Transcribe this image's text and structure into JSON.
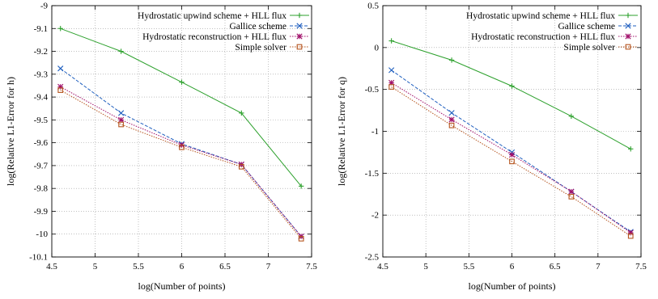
{
  "chart_data": [
    {
      "type": "line",
      "xlabel": "log(Number of points)",
      "ylabel": "log(Relative L1-Error for h)",
      "xlim": [
        4.5,
        7.5
      ],
      "ylim": [
        -10.1,
        -9.0
      ],
      "xticks": [
        4.5,
        5,
        5.5,
        6,
        6.5,
        7,
        7.5
      ],
      "xtick_labels": [
        "4.5",
        "5",
        "5.5",
        "6",
        "6.5",
        "7",
        "7.5"
      ],
      "yticks": [
        -10.1,
        -10.0,
        -9.9,
        -9.8,
        -9.7,
        -9.6,
        -9.5,
        -9.4,
        -9.3,
        -9.2,
        -9.1,
        -9.0
      ],
      "ytick_labels": [
        "-10.1",
        "-10",
        "-9.9",
        "-9.8",
        "-9.7",
        "-9.6",
        "-9.5",
        "-9.4",
        "-9.3",
        "-9.2",
        "-9.1",
        "-9"
      ],
      "grid": true,
      "legend_position": "top-right",
      "series": [
        {
          "name": "Hydrostatic upwind scheme + HLL flux",
          "color": "#2ca02c",
          "marker": "plus",
          "dash": "solid",
          "x": [
            4.6,
            5.3,
            6.0,
            6.69,
            7.38
          ],
          "y": [
            -9.1,
            -9.2,
            -9.335,
            -9.47,
            -9.79
          ]
        },
        {
          "name": "Gallice scheme",
          "color": "#1f5fbf",
          "marker": "cross",
          "dash": "dashed",
          "x": [
            4.6,
            5.3,
            6.0,
            6.69,
            7.38
          ],
          "y": [
            -9.275,
            -9.47,
            -9.605,
            -9.695,
            -10.01
          ]
        },
        {
          "name": "Hydrostatic reconstruction + HLL flux",
          "color": "#a0106a",
          "marker": "star",
          "dash": "dotted",
          "x": [
            4.6,
            5.3,
            6.0,
            6.69,
            7.38
          ],
          "y": [
            -9.355,
            -9.5,
            -9.61,
            -9.695,
            -10.01
          ]
        },
        {
          "name": "Simple solver",
          "color": "#b5541e",
          "marker": "square",
          "dash": "dotted",
          "x": [
            4.6,
            5.3,
            6.0,
            6.69,
            7.38
          ],
          "y": [
            -9.37,
            -9.52,
            -9.62,
            -9.705,
            -10.02
          ]
        }
      ]
    },
    {
      "type": "line",
      "xlabel": "log(Number of points)",
      "ylabel": "log(Relative L1-Error for q)",
      "xlim": [
        4.5,
        7.5
      ],
      "ylim": [
        -2.5,
        0.5
      ],
      "xticks": [
        4.5,
        5,
        5.5,
        6,
        6.5,
        7,
        7.5
      ],
      "xtick_labels": [
        "4.5",
        "5",
        "5.5",
        "6",
        "6.5",
        "7",
        "7.5"
      ],
      "yticks": [
        -2.5,
        -2.0,
        -1.5,
        -1.0,
        -0.5,
        0.0,
        0.5
      ],
      "ytick_labels": [
        "-2.5",
        "-2",
        "-1.5",
        "-1",
        "-0.5",
        "0",
        "0.5"
      ],
      "grid": true,
      "legend_position": "top-right",
      "series": [
        {
          "name": "Hydrostatic upwind scheme + HLL flux",
          "color": "#2ca02c",
          "marker": "plus",
          "dash": "solid",
          "x": [
            4.6,
            5.3,
            6.0,
            6.69,
            7.38
          ],
          "y": [
            0.08,
            -0.15,
            -0.46,
            -0.82,
            -1.21
          ]
        },
        {
          "name": "Gallice scheme",
          "color": "#1f5fbf",
          "marker": "cross",
          "dash": "dashed",
          "x": [
            4.6,
            5.3,
            6.0,
            6.69,
            7.38
          ],
          "y": [
            -0.27,
            -0.78,
            -1.25,
            -1.72,
            -2.2
          ]
        },
        {
          "name": "Hydrostatic reconstruction + HLL flux",
          "color": "#a0106a",
          "marker": "star",
          "dash": "dotted",
          "x": [
            4.6,
            5.3,
            6.0,
            6.69,
            7.38
          ],
          "y": [
            -0.42,
            -0.86,
            -1.28,
            -1.72,
            -2.21
          ]
        },
        {
          "name": "Simple solver",
          "color": "#b5541e",
          "marker": "square",
          "dash": "dotted",
          "x": [
            4.6,
            5.3,
            6.0,
            6.69,
            7.38
          ],
          "y": [
            -0.47,
            -0.93,
            -1.36,
            -1.78,
            -2.25
          ]
        }
      ]
    }
  ]
}
